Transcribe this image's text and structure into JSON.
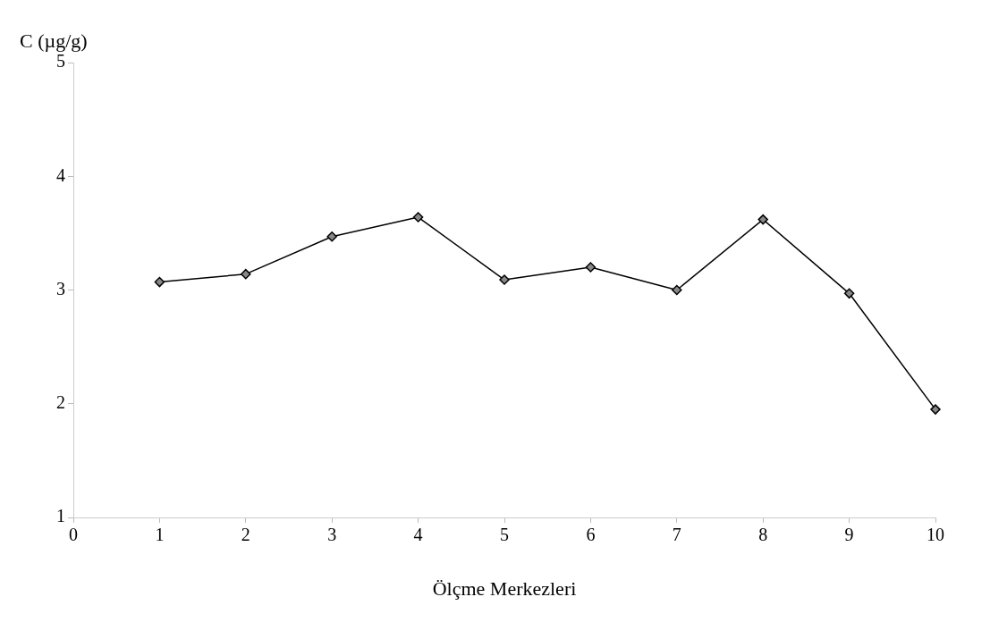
{
  "chart_data": {
    "type": "line",
    "xlabel": "Ölçme Merkezleri",
    "ylabel": "C (µg/g)",
    "x": [
      1,
      2,
      3,
      4,
      5,
      6,
      7,
      8,
      9,
      10
    ],
    "series": [
      {
        "color": "#000000",
        "values": [
          3.07,
          3.14,
          3.47,
          3.64,
          3.09,
          3.2,
          3.0,
          3.62,
          2.97,
          1.95
        ]
      }
    ],
    "xlim": [
      0,
      10
    ],
    "xticks": [
      0,
      1,
      2,
      3,
      4,
      5,
      6,
      7,
      8,
      9,
      10
    ],
    "ylim": [
      1,
      5
    ],
    "yticks": [
      1,
      2,
      3,
      4,
      5
    ],
    "grid": false,
    "legend": false,
    "marker": "diamond",
    "line_style": "solid"
  }
}
